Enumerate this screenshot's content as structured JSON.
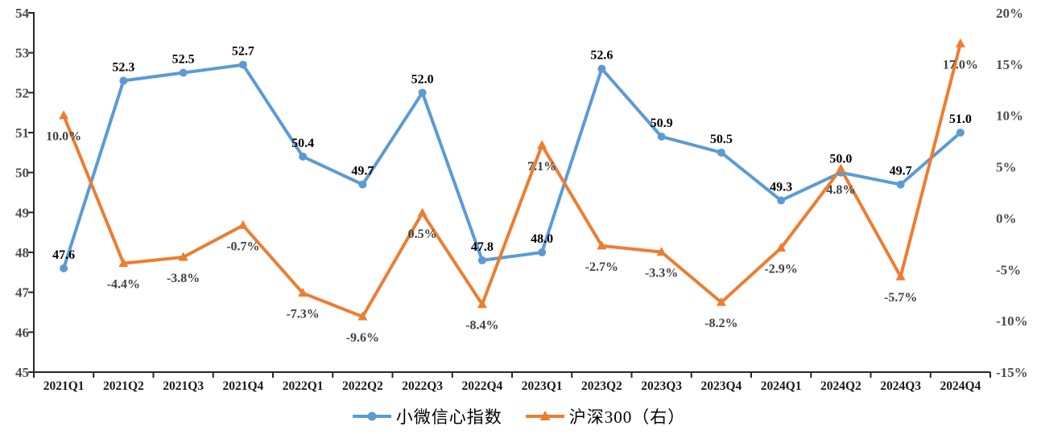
{
  "chart_data": {
    "type": "line",
    "title": "",
    "categories": [
      "2021Q1",
      "2021Q2",
      "2021Q3",
      "2021Q4",
      "2022Q1",
      "2022Q2",
      "2022Q3",
      "2022Q4",
      "2023Q1",
      "2023Q2",
      "2023Q3",
      "2023Q4",
      "2024Q1",
      "2024Q2",
      "2024Q3",
      "2024Q4"
    ],
    "series": [
      {
        "name": "小微信心指数",
        "axis": "left",
        "color": "#5B9BD5",
        "marker": "circle",
        "values": [
          47.6,
          52.3,
          52.5,
          52.7,
          50.4,
          49.7,
          52.0,
          47.8,
          48.0,
          52.6,
          50.9,
          50.5,
          49.3,
          50.0,
          49.7,
          51.0
        ],
        "labels": [
          "47.6",
          "52.3",
          "52.5",
          "52.7",
          "50.4",
          "49.7",
          "52.0",
          "47.8",
          "48.0",
          "52.6",
          "50.9",
          "50.5",
          "49.3",
          "50.0",
          "49.7",
          "51.0"
        ],
        "label_color": "#000000"
      },
      {
        "name": "沪深300（右）",
        "axis": "right",
        "color": "#ED7D31",
        "marker": "triangle",
        "values": [
          10.0,
          -4.4,
          -3.8,
          -0.7,
          -7.3,
          -9.6,
          0.5,
          -8.4,
          7.1,
          -2.7,
          -3.3,
          -8.2,
          -2.9,
          4.8,
          -5.7,
          17.0
        ],
        "labels": [
          "10.0%",
          "-4.4%",
          "-3.8%",
          "-0.7%",
          "-7.3%",
          "-9.6%",
          "0.5%",
          "-8.4%",
          "7.1%",
          "-2.7%",
          "-3.3%",
          "-8.2%",
          "-2.9%",
          "4.8%",
          "-5.7%",
          "17.0%"
        ],
        "label_color": "#404040"
      }
    ],
    "left_axis": {
      "min": 45,
      "max": 54,
      "tick_step": 1,
      "tick_labels": [
        "54",
        "53",
        "52",
        "51",
        "50",
        "49",
        "48",
        "47",
        "46",
        "45"
      ]
    },
    "right_axis": {
      "min": -15,
      "max": 20,
      "tick_step": 5,
      "tick_labels": [
        "20%",
        "15%",
        "10%",
        "5%",
        "0%",
        "-5%",
        "-10%",
        "-15%"
      ]
    },
    "axis_color": "#262626",
    "y_tick_label_color": "#4d4d4d",
    "x_tick_label_color": "#1a1a1a",
    "grid": false,
    "legend_position": "bottom"
  }
}
